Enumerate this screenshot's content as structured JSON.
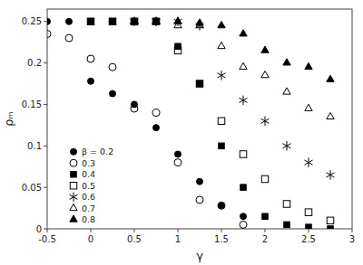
{
  "chart_data": {
    "type": "scatter",
    "xlabel": "γ",
    "ylabel": "ρₘ",
    "xlim": [
      -0.5,
      3.0
    ],
    "ylim": [
      0.0,
      0.265
    ],
    "xticks": [
      -0.5,
      0,
      0.5,
      1,
      1.5,
      2,
      2.5,
      3
    ],
    "yticks": [
      0,
      0.05,
      0.1,
      0.15,
      0.2,
      0.25
    ],
    "grid": false,
    "legend": "lower left",
    "series": [
      {
        "name": "β = 0.2",
        "color": "black",
        "marker": "circle",
        "x": [
          -0.5,
          -0.25,
          0.0,
          0.25,
          0.5,
          0.75,
          1.0,
          1.25,
          1.5,
          1.75
        ],
        "values": [
          0.25,
          0.25,
          0.178,
          0.163,
          0.15,
          0.122,
          0.09,
          0.057,
          0.028,
          0.015
        ]
      },
      {
        "name": "0.3",
        "color": "black",
        "marker": "circle-open",
        "x": [
          -0.5,
          -0.25,
          0.0,
          0.25,
          0.5,
          0.75,
          1.0,
          1.25,
          1.5,
          1.75
        ],
        "values": [
          0.235,
          0.23,
          0.205,
          0.195,
          0.145,
          0.14,
          0.08,
          0.035,
          0.028,
          0.005
        ]
      },
      {
        "name": "0.4",
        "color": "black",
        "marker": "square",
        "x": [
          0.0,
          0.25,
          0.5,
          0.75,
          1.0,
          1.25,
          1.5,
          1.75,
          2.0,
          2.25,
          2.5,
          2.75
        ],
        "values": [
          0.25,
          0.25,
          0.25,
          0.25,
          0.22,
          0.175,
          0.1,
          0.05,
          0.015,
          0.005,
          0.002,
          0.0
        ]
      },
      {
        "name": "0.5",
        "color": "black",
        "marker": "square-open",
        "x": [
          0.0,
          0.25,
          0.5,
          0.75,
          1.0,
          1.25,
          1.5,
          1.75,
          2.0,
          2.25,
          2.5,
          2.75
        ],
        "values": [
          0.25,
          0.25,
          0.25,
          0.25,
          0.215,
          0.175,
          0.13,
          0.09,
          0.06,
          0.03,
          0.02,
          0.01
        ]
      },
      {
        "name": "0.6",
        "color": "black",
        "marker": "asterisk",
        "x": [
          0.5,
          0.75,
          1.0,
          1.25,
          1.5,
          1.75,
          2.0,
          2.25,
          2.5,
          2.75
        ],
        "values": [
          0.25,
          0.25,
          0.25,
          0.245,
          0.185,
          0.155,
          0.13,
          0.1,
          0.08,
          0.065
        ]
      },
      {
        "name": "0.7",
        "color": "black",
        "marker": "triangle-open",
        "x": [
          0.5,
          0.75,
          1.0,
          1.25,
          1.5,
          1.75,
          2.0,
          2.25,
          2.5,
          2.75
        ],
        "values": [
          0.25,
          0.25,
          0.245,
          0.245,
          0.22,
          0.195,
          0.185,
          0.165,
          0.145,
          0.135
        ]
      },
      {
        "name": "0.8",
        "color": "black",
        "marker": "triangle",
        "x": [
          0.5,
          0.75,
          1.0,
          1.25,
          1.5,
          1.75,
          2.0,
          2.25,
          2.5,
          2.75
        ],
        "values": [
          0.25,
          0.25,
          0.25,
          0.248,
          0.245,
          0.235,
          0.215,
          0.2,
          0.195,
          0.18
        ]
      }
    ]
  }
}
